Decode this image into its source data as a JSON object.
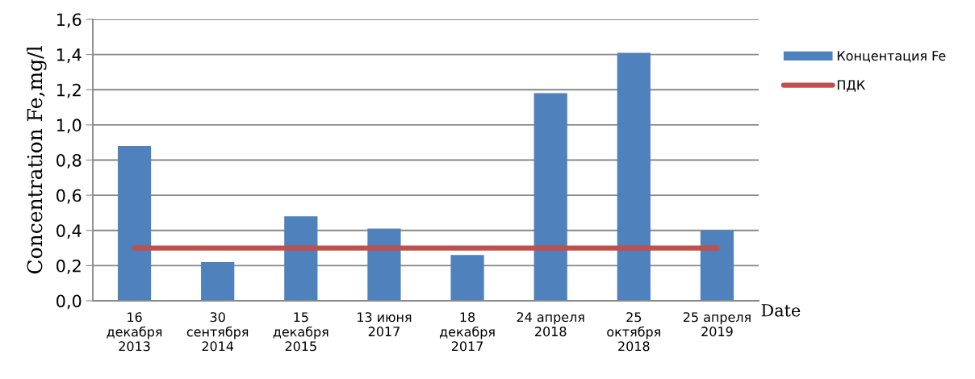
{
  "chart_data": {
    "type": "bar",
    "xlabel": "Date",
    "ylabel": "Concentration Fe,mg/l",
    "categories": [
      "16\nдекабря\n2013",
      "30\nсентября\n2014",
      "15\nдекабря\n2015",
      "13 июня\n2017",
      "18\nдекабря\n2017",
      "24 апреля\n2018",
      "25\nоктября\n2018",
      "25 апреля\n2019"
    ],
    "series": [
      {
        "name": "Концентация Fe",
        "color": "#4f81bd",
        "values": [
          0.88,
          0.22,
          0.48,
          0.41,
          0.26,
          1.18,
          1.41,
          0.4
        ]
      },
      {
        "name": "ПДК",
        "color": "#c0504d",
        "type": "line",
        "values": [
          0.3,
          0.3,
          0.3,
          0.3,
          0.3,
          0.3,
          0.3,
          0.3
        ]
      }
    ],
    "ylim": [
      0,
      1.6
    ],
    "yticks": [
      {
        "value": 0,
        "label": "0,0"
      },
      {
        "value": 0.2,
        "label": "0,2"
      },
      {
        "value": 0.4,
        "label": "0,4"
      },
      {
        "value": 0.6,
        "label": "0,6"
      },
      {
        "value": 0.8,
        "label": "0,8"
      },
      {
        "value": 1.0,
        "label": "1,0"
      },
      {
        "value": 1.2,
        "label": "1,2"
      },
      {
        "value": 1.4,
        "label": "1,4"
      },
      {
        "value": 1.6,
        "label": "1,6"
      }
    ],
    "grid": "y",
    "legend": "right",
    "marker": "none",
    "line_style": "solid"
  }
}
